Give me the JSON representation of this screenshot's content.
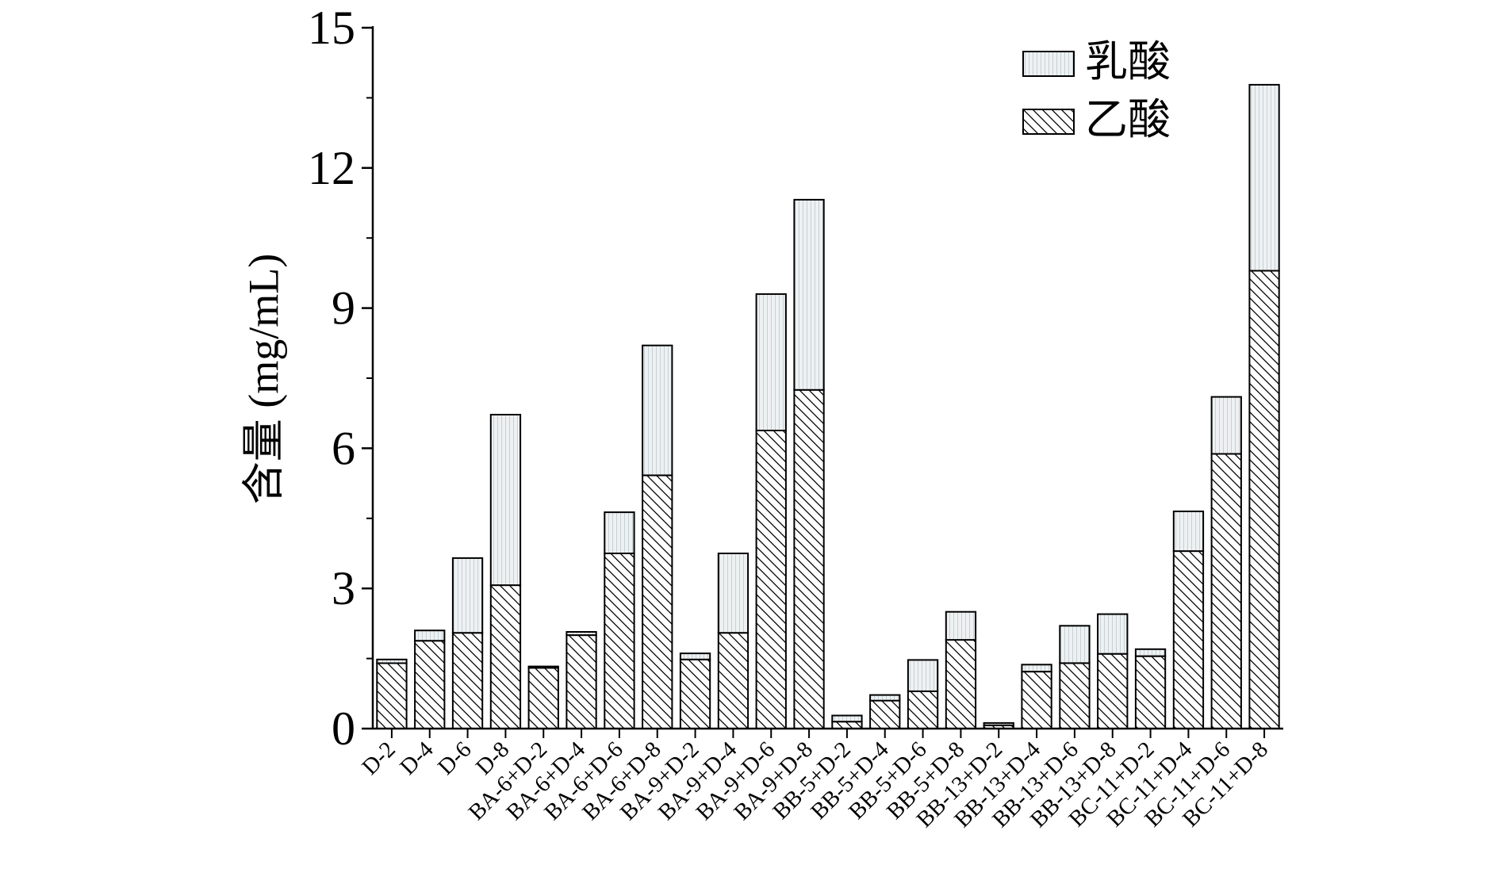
{
  "chart_data": {
    "type": "bar",
    "stacked": true,
    "title": "",
    "xlabel": "",
    "ylabel": "含量 (mg/mL)",
    "ylim": [
      0,
      15
    ],
    "yticks": [
      0,
      3,
      6,
      9,
      12,
      15
    ],
    "grid": false,
    "legend_position": "top-right",
    "categories": [
      "D-2",
      "D-4",
      "D-6",
      "D-8",
      "BA-6+D-2",
      "BA-6+D-4",
      "BA-6+D-6",
      "BA-6+D-8",
      "BA-9+D-2",
      "BA-9+D-4",
      "BA-9+D-6",
      "BA-9+D-8",
      "BB-5+D-2",
      "BB-5+D-4",
      "BB-5+D-6",
      "BB-5+D-8",
      "BB-13+D-2",
      "BB-13+D-4",
      "BB-13+D-6",
      "BB-13+D-8",
      "BC-11+D-2",
      "BC-11+D-4",
      "BC-11+D-6",
      "BC-11+D-8"
    ],
    "series": [
      {
        "name": "乙酸",
        "fill": "hatch",
        "values": [
          1.4,
          1.88,
          2.05,
          3.07,
          1.3,
          2.0,
          3.75,
          5.42,
          1.48,
          2.05,
          6.38,
          7.25,
          0.15,
          0.6,
          0.8,
          1.9,
          0.07,
          1.22,
          1.4,
          1.6,
          1.55,
          3.8,
          5.88,
          9.8
        ]
      },
      {
        "name": "乳酸",
        "fill": "stipple",
        "values": [
          0.08,
          0.22,
          1.6,
          3.65,
          0.03,
          0.07,
          0.88,
          2.78,
          0.13,
          1.7,
          2.92,
          4.07,
          0.13,
          0.12,
          0.67,
          0.6,
          0.05,
          0.15,
          0.8,
          0.85,
          0.15,
          0.85,
          1.22,
          3.98
        ]
      }
    ],
    "colors": {
      "axis": "#000000",
      "bar_fill": "#ffffff",
      "stipple_bg": "#eef1f2",
      "stipple_line": "#c6d0d5",
      "hatch": "#000000"
    }
  }
}
